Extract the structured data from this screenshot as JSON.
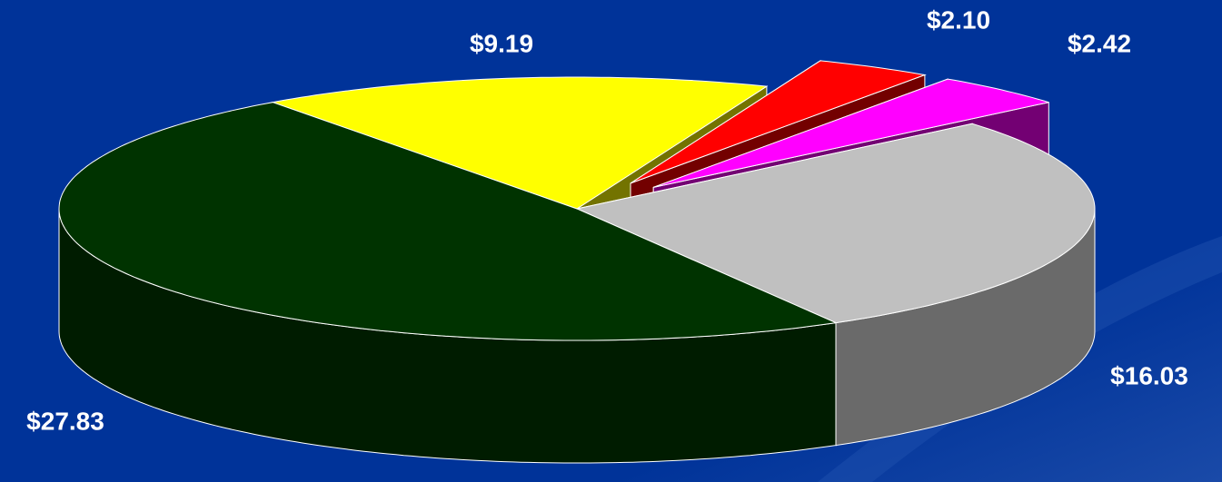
{
  "chart_data": {
    "type": "pie3d",
    "values": [
      27.83,
      9.19,
      2.1,
      2.42,
      16.03
    ],
    "value_labels": [
      "$27.83",
      "$9.19",
      "$2.10",
      "$2.42",
      "$16.03"
    ],
    "colors": [
      "#003300",
      "#ffff00",
      "#ff0000",
      "#ff00ff",
      "#c0c0c0"
    ],
    "exploded": [
      false,
      false,
      true,
      true,
      false
    ]
  }
}
